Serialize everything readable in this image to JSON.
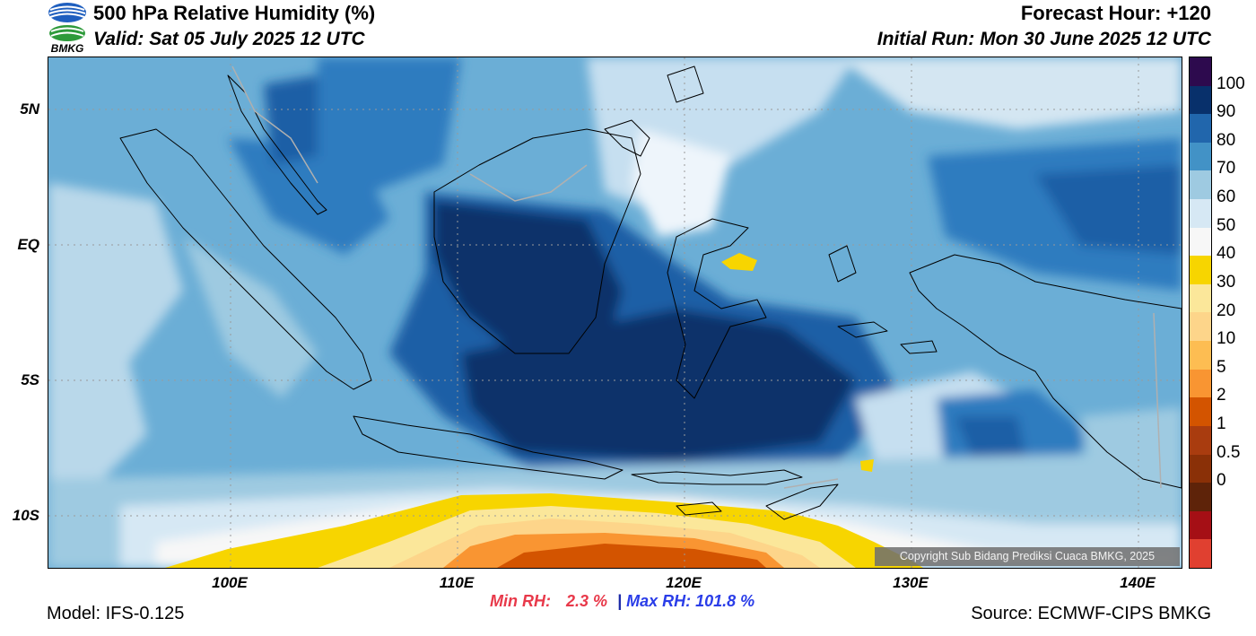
{
  "header": {
    "title": "500 hPa Relative Humidity (%)",
    "valid": "Valid: Sat 05 July 2025 12 UTC",
    "forecast_hour": "Forecast Hour: +120",
    "initial_run": "Initial Run: Mon 30 June 2025 12 UTC",
    "logo_text": "BMKG"
  },
  "map": {
    "lat_labels": [
      "5N",
      "EQ",
      "5S",
      "10S"
    ],
    "lon_labels": [
      "100E",
      "110E",
      "120E",
      "130E",
      "140E"
    ],
    "copyright": "Copyright Sub Bidang Prediksi Cuaca BMKG, 2025"
  },
  "colorbar": {
    "labels": [
      "100",
      "90",
      "80",
      "70",
      "60",
      "50",
      "40",
      "30",
      "20",
      "10",
      "5",
      "2",
      "1",
      "0.5",
      "0"
    ],
    "colors": [
      "#2d0a4e",
      "#08306b",
      "#2166ac",
      "#4292c6",
      "#9ecae1",
      "#d6e8f4",
      "#f7f7f7",
      "#f7d500",
      "#fbe79a",
      "#fdd58a",
      "#fdbd52",
      "#f99532",
      "#d35400",
      "#a93c0f",
      "#8a3007",
      "#5e2309",
      "#a50f15",
      "#e04030"
    ]
  },
  "stats": {
    "min_label": "Min RH:",
    "min_value": "2.3 %",
    "separator": "|",
    "max_label": "Max RH: 101.8 %"
  },
  "footer": {
    "model": "Model: IFS-0.125",
    "source": "Source: ECMWF-CIPS BMKG"
  }
}
